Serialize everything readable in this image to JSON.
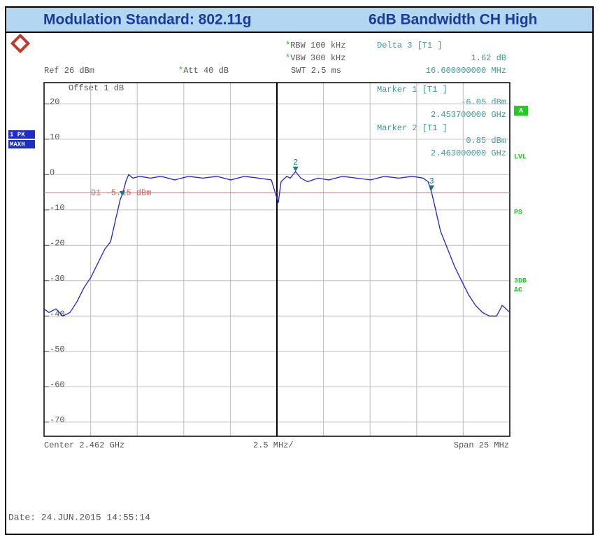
{
  "header": {
    "left": "Modulation Standard: 802.11g",
    "right": "6dB Bandwidth CH High"
  },
  "settings": {
    "ref": "Ref  26 dBm",
    "att": "*Att  40 dB",
    "rbw": "*RBW 100 kHz",
    "vbw": "*VBW 300 kHz",
    "swt": "SWT 2.5 ms",
    "offset": "Offset  1 dB"
  },
  "marker_info": [
    {
      "title": "Delta 3 [T1 ]",
      "level": "1.62 dB",
      "freq": "16.600000000 MHz"
    },
    {
      "title": "Marker 1 [T1 ]",
      "level": "-6.05 dBm",
      "freq": "2.453700000 GHz"
    },
    {
      "title": "Marker 2 [T1 ]",
      "level": "0.85 dBm",
      "freq": "2.463000000 GHz"
    }
  ],
  "side_labels": {
    "trace1": "1 PK",
    "trace2": "MAXH",
    "a": "A",
    "lvl": "LVL",
    "ps": "PS",
    "db3": "3DB",
    "ac": "AC"
  },
  "footer": {
    "center": "Center 2.462 GHz",
    "div": "2.5 MHz/",
    "span": "Span 25 MHz",
    "date": "Date: 24.JUN.2015  14:55:14"
  },
  "chart_data": {
    "type": "line",
    "xlim": [
      2449.5,
      2474.5
    ],
    "xticks": [
      2449.5,
      2452,
      2454.5,
      2457,
      2459.5,
      2462,
      2464.5,
      2467,
      2469.5,
      2472,
      2474.5
    ],
    "ylim": [
      -74,
      26
    ],
    "yticks": [
      20,
      10,
      0,
      -10,
      -20,
      -30,
      -40,
      -50,
      -60,
      -70
    ],
    "grid": true,
    "x": [
      2449.5,
      2449.76,
      2450.14,
      2450.51,
      2450.89,
      2451.26,
      2451.64,
      2452.02,
      2452.39,
      2452.77,
      2453.07,
      2453.33,
      2453.59,
      2453.74,
      2453.89,
      2454.04,
      2454.27,
      2454.64,
      2455.21,
      2455.77,
      2456.52,
      2457.27,
      2458.02,
      2458.77,
      2459.52,
      2460.27,
      2461.02,
      2461.7,
      2461.96,
      2462.07,
      2462.22,
      2462.53,
      2462.71,
      2463.0,
      2463.28,
      2463.65,
      2464.21,
      2464.78,
      2465.53,
      2466.28,
      2467.03,
      2467.78,
      2468.53,
      2469.28,
      2469.85,
      2470.11,
      2470.3,
      2470.48,
      2470.78,
      2471.16,
      2471.54,
      2471.91,
      2472.29,
      2472.66,
      2473.04,
      2473.41,
      2473.79,
      2474.09,
      2474.31,
      2474.5
    ],
    "series": [
      {
        "name": "Trace 1",
        "color": "#1f1fe0",
        "values": [
          -38,
          -39,
          -38,
          -40,
          -39,
          -36,
          -32,
          -29,
          -25,
          -21,
          -19,
          -13,
          -7,
          -5,
          -2,
          0,
          -1,
          -0.5,
          -1,
          -0.5,
          -1.5,
          -0.5,
          -1,
          -0.5,
          -1.5,
          -0.5,
          -1,
          -1.5,
          -6,
          -8,
          -2,
          -0.5,
          -1,
          0.85,
          -1,
          -2,
          -1,
          -1.5,
          -0.5,
          -1,
          -1.5,
          -0.5,
          -1,
          -0.5,
          -1,
          -2,
          -5,
          -9,
          -16,
          -21,
          -26,
          -30,
          -34,
          -37,
          -39,
          -40,
          -40,
          -37,
          -38,
          -39
        ]
      }
    ],
    "markers": [
      {
        "x": 2453.7,
        "value": -6.05
      },
      {
        "label": "2",
        "x": 2463.0,
        "value": 0.85
      },
      {
        "label": "3",
        "x": 2470.3,
        "value": -4.43
      }
    ],
    "marker_color": "#1a7a7a",
    "display_line": {
      "label": "D1  -5.15 dBm",
      "value": -5.15,
      "color": "#e06060"
    }
  }
}
